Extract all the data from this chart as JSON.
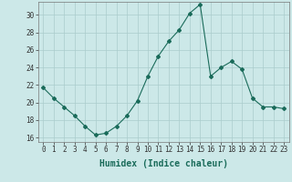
{
  "x": [
    0,
    1,
    2,
    3,
    4,
    5,
    6,
    7,
    8,
    9,
    10,
    11,
    12,
    13,
    14,
    15,
    16,
    17,
    18,
    19,
    20,
    21,
    22,
    23
  ],
  "y": [
    21.7,
    20.5,
    19.5,
    18.5,
    17.3,
    16.3,
    16.5,
    17.3,
    18.5,
    20.2,
    23.0,
    25.3,
    27.0,
    28.3,
    30.2,
    31.2,
    23.0,
    24.0,
    24.7,
    23.8,
    20.5,
    19.5,
    19.5,
    19.3
  ],
  "line_color": "#1a6b5a",
  "marker": "D",
  "markersize": 2.0,
  "linewidth": 0.8,
  "bg_color": "#cce8e8",
  "grid_color": "#aacccc",
  "xlabel": "Humidex (Indice chaleur)",
  "xlim": [
    -0.5,
    23.5
  ],
  "ylim": [
    15.5,
    31.5
  ],
  "yticks": [
    16,
    18,
    20,
    22,
    24,
    26,
    28,
    30
  ],
  "xticks": [
    0,
    1,
    2,
    3,
    4,
    5,
    6,
    7,
    8,
    9,
    10,
    11,
    12,
    13,
    14,
    15,
    16,
    17,
    18,
    19,
    20,
    21,
    22,
    23
  ],
  "tick_label_fontsize": 5.5,
  "xlabel_fontsize": 7.0
}
